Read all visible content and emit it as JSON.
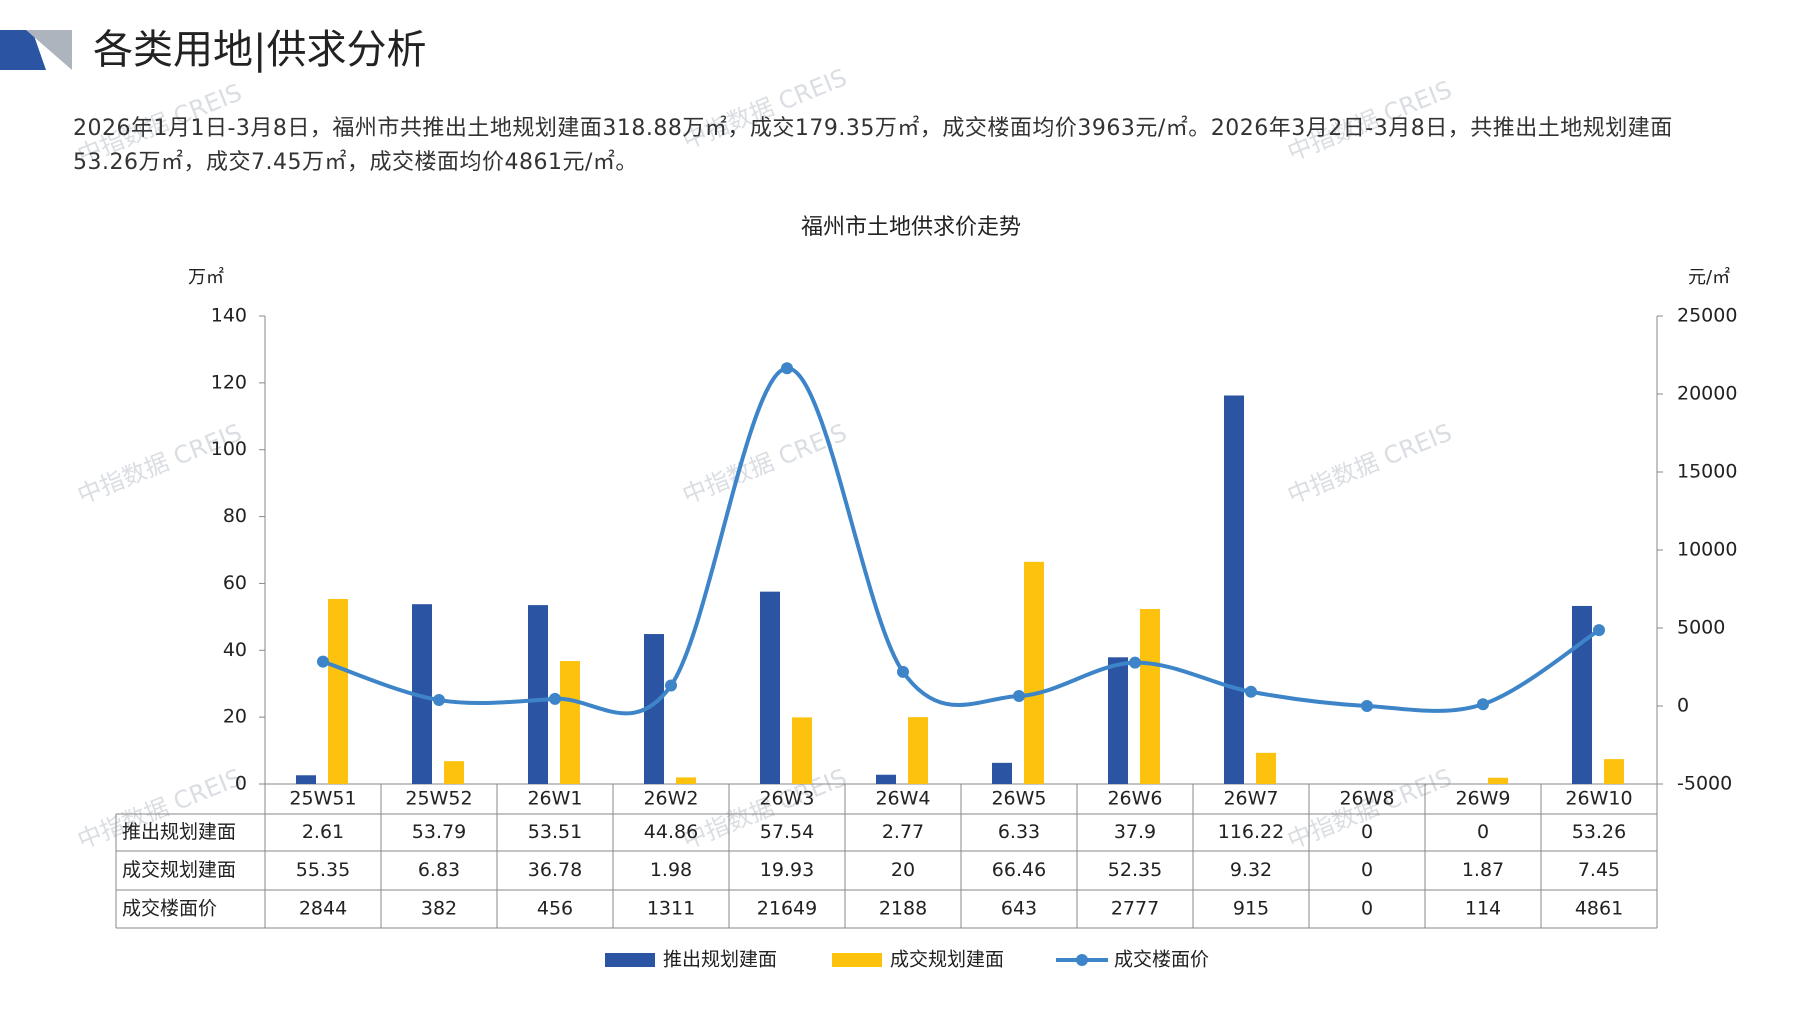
{
  "header": {
    "title": "各类用地|供求分析"
  },
  "summary": "2026年1月1日-3月8日，福州市共推出土地规划建面318.88万㎡，成交179.35万㎡，成交楼面均价3963元/㎡。2026年3月2日-3月8日，共推出土地规划建面53.26万㎡，成交7.45万㎡，成交楼面均价4861元/㎡。",
  "watermark": "中指数据 CREIS",
  "chart_data": {
    "type": "bar",
    "title": "福州市土地供求价走势",
    "y_label": "万㎡",
    "y2_label": "元/㎡",
    "categories": [
      "25W51",
      "25W52",
      "26W1",
      "26W2",
      "26W3",
      "26W4",
      "26W5",
      "26W6",
      "26W7",
      "26W8",
      "26W9",
      "26W10"
    ],
    "series": [
      {
        "name": "推出规划建面",
        "type": "bar",
        "color": "#2b54a3",
        "values": [
          2.61,
          53.79,
          53.51,
          44.86,
          57.54,
          2.77,
          6.33,
          37.9,
          116.22,
          0,
          0,
          53.26
        ]
      },
      {
        "name": "成交规划建面",
        "type": "bar",
        "color": "#fcc20e",
        "values": [
          55.35,
          6.83,
          36.78,
          1.98,
          19.93,
          20,
          66.46,
          52.35,
          9.32,
          0,
          1.87,
          7.45
        ]
      },
      {
        "name": "成交楼面价",
        "type": "line",
        "axis": "y2",
        "color": "#3d85c8",
        "values": [
          2844,
          382,
          456,
          1311,
          21649,
          2188,
          643,
          2777,
          915,
          0,
          114,
          4861
        ]
      }
    ],
    "ylim": [
      0,
      140
    ],
    "yticks": [
      0,
      20,
      40,
      60,
      80,
      100,
      120,
      140
    ],
    "y2lim": [
      -5000,
      25000
    ],
    "y2ticks": [
      -5000,
      0,
      5000,
      10000,
      15000,
      20000,
      25000
    ],
    "grid": false,
    "legend": "bottom"
  }
}
